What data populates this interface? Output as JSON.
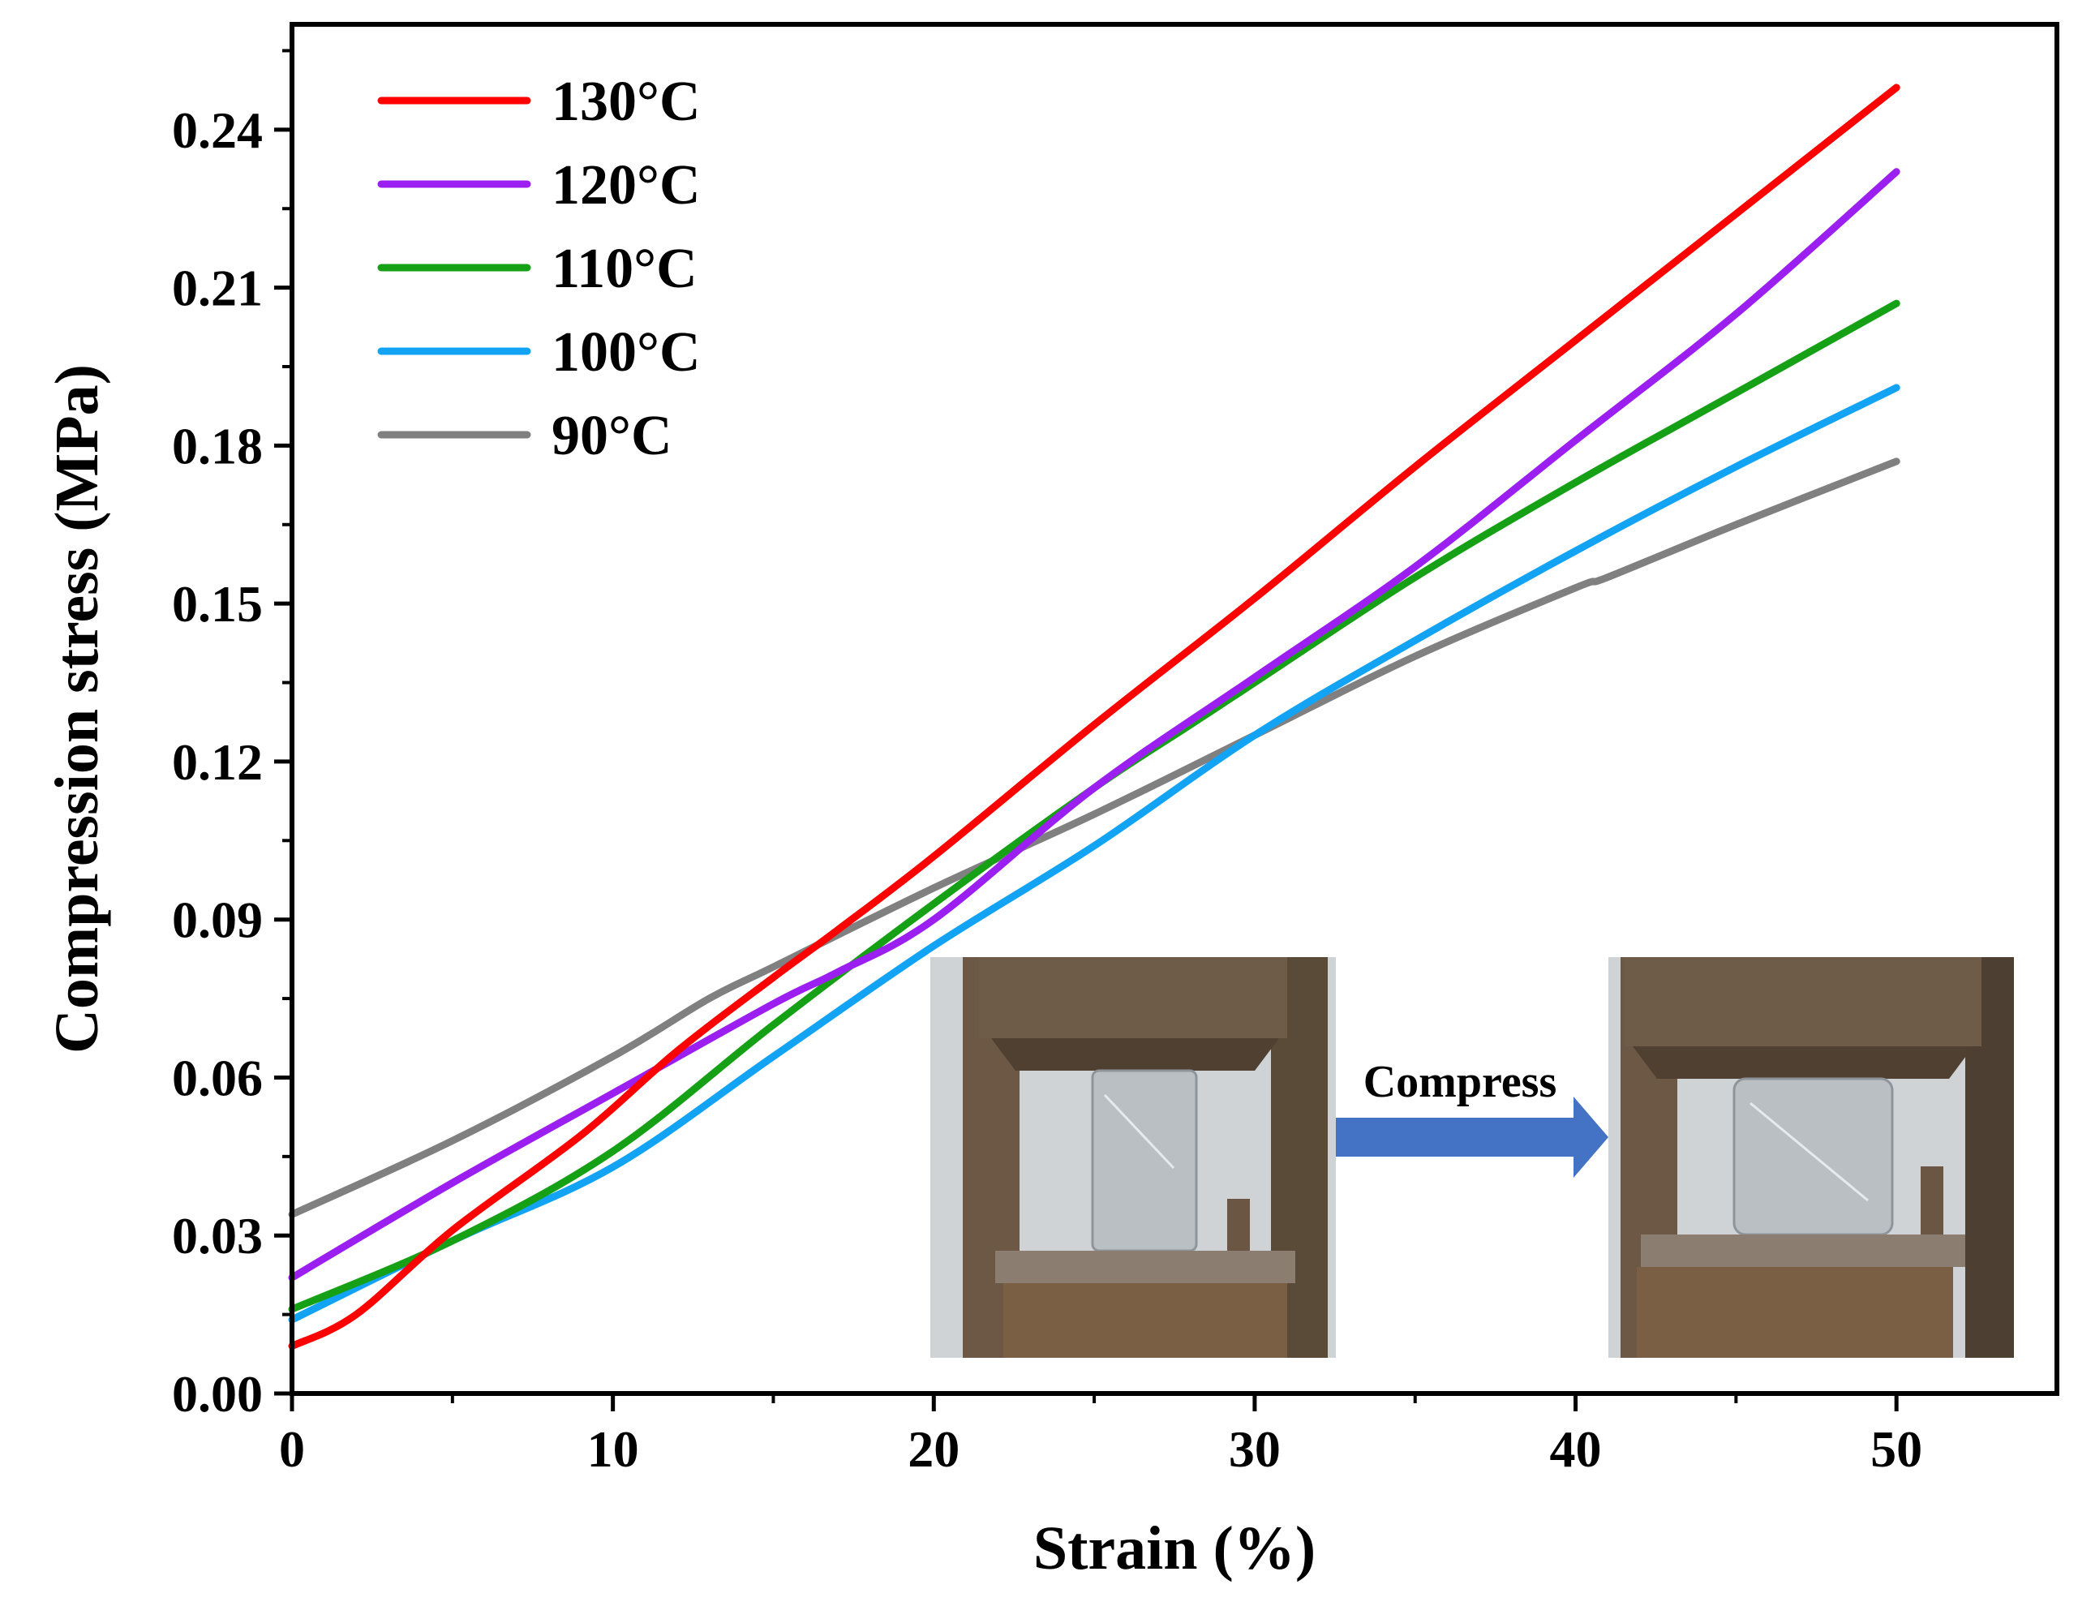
{
  "chart_data": {
    "type": "line",
    "title": "",
    "xlabel": "Strain (%)",
    "ylabel": "Compression stress (MPa)",
    "xlim": [
      0,
      55
    ],
    "ylim": [
      0,
      0.26
    ],
    "xticks": [
      0,
      10,
      20,
      30,
      40,
      50
    ],
    "xtick_labels": [
      "0",
      "10",
      "20",
      "30",
      "40",
      "50"
    ],
    "yticks": [
      0.0,
      0.03,
      0.06,
      0.09,
      0.12,
      0.15,
      0.18,
      0.21,
      0.24
    ],
    "ytick_labels": [
      "0.00",
      "0.03",
      "0.06",
      "0.09",
      "0.12",
      "0.15",
      "0.18",
      "0.21",
      "0.24"
    ],
    "legend_position": "top-left",
    "series": [
      {
        "name": "130°C",
        "color": "#ff0000",
        "x": [
          0,
          2,
          5,
          9,
          12,
          15,
          17,
          20,
          25,
          30,
          35,
          40,
          45,
          50
        ],
        "values": [
          0.009,
          0.015,
          0.031,
          0.049,
          0.065,
          0.079,
          0.088,
          0.102,
          0.127,
          0.151,
          0.176,
          0.2,
          0.224,
          0.248
        ]
      },
      {
        "name": "120°C",
        "color": "#9b1ff0",
        "x": [
          0,
          5,
          10,
          15,
          17,
          20,
          25,
          30,
          35,
          40,
          45,
          50
        ],
        "values": [
          0.022,
          0.04,
          0.057,
          0.074,
          0.08,
          0.09,
          0.115,
          0.136,
          0.157,
          0.181,
          0.205,
          0.232
        ]
      },
      {
        "name": "110°C",
        "color": "#16a016",
        "x": [
          0,
          5,
          10,
          15,
          20,
          25,
          28,
          30,
          35,
          40,
          45,
          50
        ],
        "values": [
          0.016,
          0.029,
          0.046,
          0.07,
          0.093,
          0.115,
          0.127,
          0.135,
          0.155,
          0.173,
          0.19,
          0.207
        ]
      },
      {
        "name": "100°C",
        "color": "#12a3f5",
        "x": [
          0,
          5,
          10,
          15,
          20,
          25,
          30,
          35,
          40,
          45,
          50
        ],
        "values": [
          0.014,
          0.029,
          0.043,
          0.064,
          0.085,
          0.104,
          0.125,
          0.143,
          0.16,
          0.176,
          0.191
        ]
      },
      {
        "name": "90°C",
        "color": "#808080",
        "x": [
          0,
          5,
          10,
          13,
          15,
          20,
          25,
          30,
          35,
          40,
          41,
          45,
          50
        ],
        "values": [
          0.034,
          0.048,
          0.064,
          0.075,
          0.081,
          0.096,
          0.11,
          0.125,
          0.14,
          0.153,
          0.155,
          0.165,
          0.177
        ]
      }
    ],
    "annotations": [
      {
        "text": "Compress",
        "kind": "inset-arrow-label"
      }
    ]
  },
  "inset": {
    "arrow_color": "#4472c4",
    "frame_color": "#5a4a38",
    "rust_color": "#7a5f45",
    "background_color": "#cfd3d6",
    "sample_color": "#b9bfc3"
  }
}
